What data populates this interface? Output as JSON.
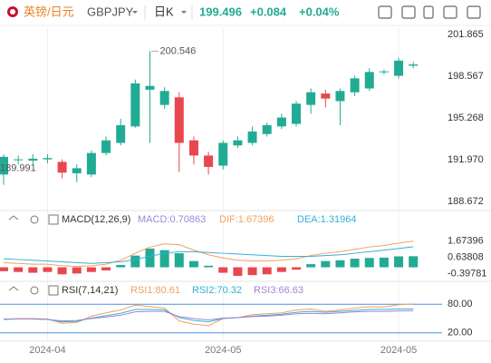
{
  "header": {
    "pair_cn": "英镑/日元",
    "symbol": "GBPJPY",
    "period": "日K",
    "price": "199.496",
    "change": "+0.084",
    "change_pct": "+0.04%"
  },
  "chart_data": [
    {
      "type": "candlestick",
      "categories": [
        null,
        null,
        null,
        "2024-04",
        null,
        null,
        null,
        null,
        null,
        null,
        null,
        null,
        null,
        null,
        null,
        "2024-05",
        null,
        null,
        null,
        null,
        null,
        null,
        null,
        null,
        null,
        null,
        null,
        "2024-05",
        null
      ],
      "open": [
        190.8,
        191.95,
        191.9,
        192.0,
        191.8,
        190.9,
        190.8,
        192.5,
        193.3,
        194.6,
        197.5,
        196.3,
        196.9,
        193.5,
        192.3,
        191.5,
        193.1,
        193.3,
        194.0,
        194.6,
        194.8,
        196.3,
        197.2,
        196.6,
        197.3,
        197.6,
        198.9,
        198.6,
        199.4
      ],
      "high": [
        192.4,
        192.3,
        192.4,
        192.4,
        192.0,
        191.6,
        192.7,
        193.8,
        195.2,
        198.3,
        200.546,
        197.7,
        197.3,
        193.8,
        192.6,
        193.5,
        193.8,
        194.6,
        194.9,
        195.6,
        196.6,
        197.6,
        197.5,
        197.6,
        198.6,
        199.2,
        199.1,
        200.0,
        199.7
      ],
      "low": [
        189.991,
        191.6,
        191.6,
        191.7,
        190.5,
        190.2,
        190.6,
        192.3,
        193.1,
        194.5,
        193.3,
        196.0,
        191.0,
        191.6,
        190.8,
        191.2,
        192.9,
        193.1,
        193.8,
        194.4,
        194.6,
        195.6,
        196.1,
        194.7,
        197.0,
        197.4,
        198.7,
        198.4,
        199.2
      ],
      "close": [
        192.2,
        192.0,
        192.05,
        192.1,
        190.95,
        191.3,
        192.5,
        193.5,
        194.7,
        198.0,
        197.8,
        197.4,
        193.3,
        192.3,
        191.4,
        193.3,
        193.5,
        194.2,
        194.7,
        195.3,
        196.4,
        197.3,
        196.8,
        197.4,
        198.4,
        198.9,
        198.95,
        199.8,
        199.5
      ],
      "up_color": "#22ab94",
      "down_color": "#e9474f",
      "ylim": [
        188.672,
        201.865
      ],
      "yticks": [
        201.865,
        198.567,
        195.268,
        {
          "value": 191.97,
          "label": "191.970"
        },
        188.672
      ],
      "max_label": "200.546",
      "min_label": "189.991"
    },
    {
      "type": "macd",
      "title": "MACD(12,26,9)",
      "ylim": [
        -0.9,
        2.3
      ],
      "yticks": [
        1.67396,
        0.63808,
        -0.39781
      ],
      "series": [
        {
          "name": "MACD",
          "legend_label": "MACD:0.70863",
          "color": "#9c88d4",
          "up_color": "#22ab94",
          "down_color": "#e9474f",
          "style": "histogram",
          "values": [
            -0.25,
            -0.3,
            -0.35,
            -0.3,
            -0.45,
            -0.4,
            -0.3,
            -0.2,
            0.15,
            0.75,
            1.2,
            1.1,
            0.9,
            0.4,
            0.1,
            -0.35,
            -0.55,
            -0.5,
            -0.45,
            -0.3,
            -0.15,
            0.2,
            0.4,
            0.45,
            0.55,
            0.6,
            0.62,
            0.7,
            0.70863
          ]
        },
        {
          "name": "DIF",
          "legend_label": "DIF:1.67396",
          "color": "#f5a05a",
          "style": "line",
          "values": [
            0.3,
            0.25,
            0.2,
            0.2,
            0.1,
            0.05,
            0.1,
            0.2,
            0.45,
            0.9,
            1.3,
            1.5,
            1.45,
            1.1,
            0.8,
            0.6,
            0.45,
            0.4,
            0.4,
            0.45,
            0.55,
            0.75,
            0.9,
            1.0,
            1.15,
            1.3,
            1.4,
            1.55,
            1.67396
          ]
        },
        {
          "name": "DEA",
          "legend_label": "DEA:1.31964",
          "color": "#36b0d8",
          "style": "line",
          "values": [
            0.55,
            0.5,
            0.45,
            0.4,
            0.35,
            0.3,
            0.25,
            0.3,
            0.35,
            0.5,
            0.7,
            0.9,
            1.0,
            1.0,
            0.95,
            0.9,
            0.85,
            0.8,
            0.75,
            0.7,
            0.7,
            0.7,
            0.75,
            0.8,
            0.9,
            1.0,
            1.1,
            1.2,
            1.31964
          ]
        }
      ]
    },
    {
      "type": "rsi",
      "title": "RSI(7,14,21)",
      "ylim": [
        10,
        90
      ],
      "yticks": [
        {
          "value": 80,
          "label": "80.00"
        },
        {
          "value": 20,
          "label": "20.00"
        }
      ],
      "tick_line_color": "#4a8fe0",
      "series": [
        {
          "name": "RSI1",
          "legend_label": "RSI1:80.61",
          "color": "#f5a05a",
          "values": [
            48,
            50,
            50,
            49,
            40,
            42,
            55,
            62,
            68,
            78,
            75,
            72,
            45,
            38,
            35,
            50,
            52,
            58,
            60,
            62,
            68,
            70,
            65,
            68,
            72,
            75,
            74,
            79,
            80.61
          ]
        },
        {
          "name": "RSI2",
          "legend_label": "RSI2:70.32",
          "color": "#36b0d8",
          "values": [
            48,
            49,
            49,
            48,
            43,
            44,
            51,
            56,
            61,
            69,
            69,
            68,
            52,
            46,
            43,
            50,
            52,
            55,
            57,
            59,
            63,
            65,
            63,
            65,
            67,
            69,
            69,
            70,
            70.32
          ]
        },
        {
          "name": "RSI3",
          "legend_label": "RSI3:66.63",
          "color": "#9c88d4",
          "values": [
            49,
            49,
            49,
            48,
            45,
            46,
            50,
            53,
            57,
            64,
            65,
            65,
            54,
            50,
            47,
            51,
            52,
            54,
            55,
            57,
            60,
            61,
            60,
            62,
            64,
            65,
            65,
            66,
            66.63
          ]
        }
      ]
    }
  ]
}
